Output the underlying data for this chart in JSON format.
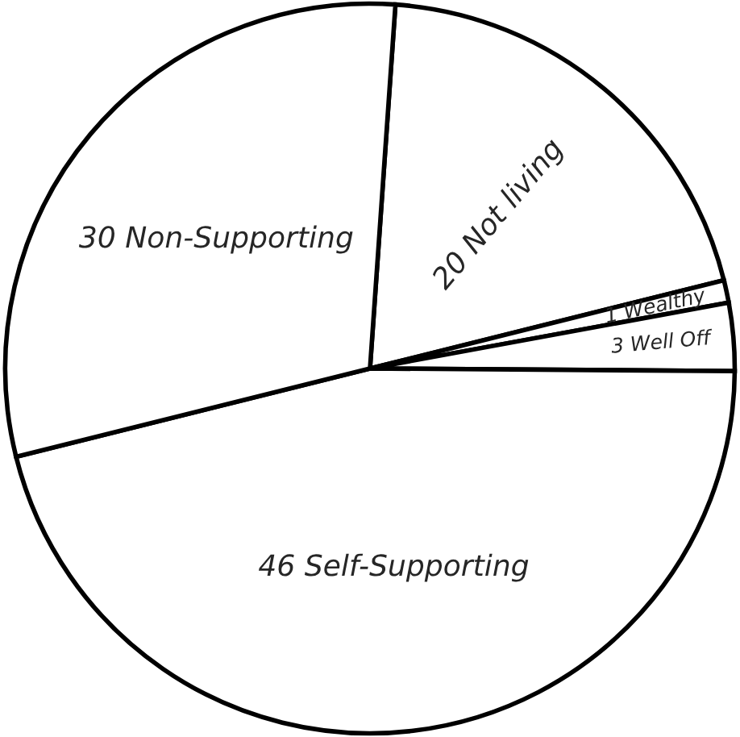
{
  "chart_data": {
    "type": "pie",
    "categories": [
      "20 Not living",
      "1 Wealthy",
      "3 Well Off",
      "46 Self-Supporting",
      "30 Non-Supporting"
    ],
    "values": [
      20,
      1,
      3,
      46,
      30
    ],
    "colors": [
      "#ffffff",
      "#ffffff",
      "#ffffff",
      "#ffffff",
      "#ffffff"
    ]
  }
}
